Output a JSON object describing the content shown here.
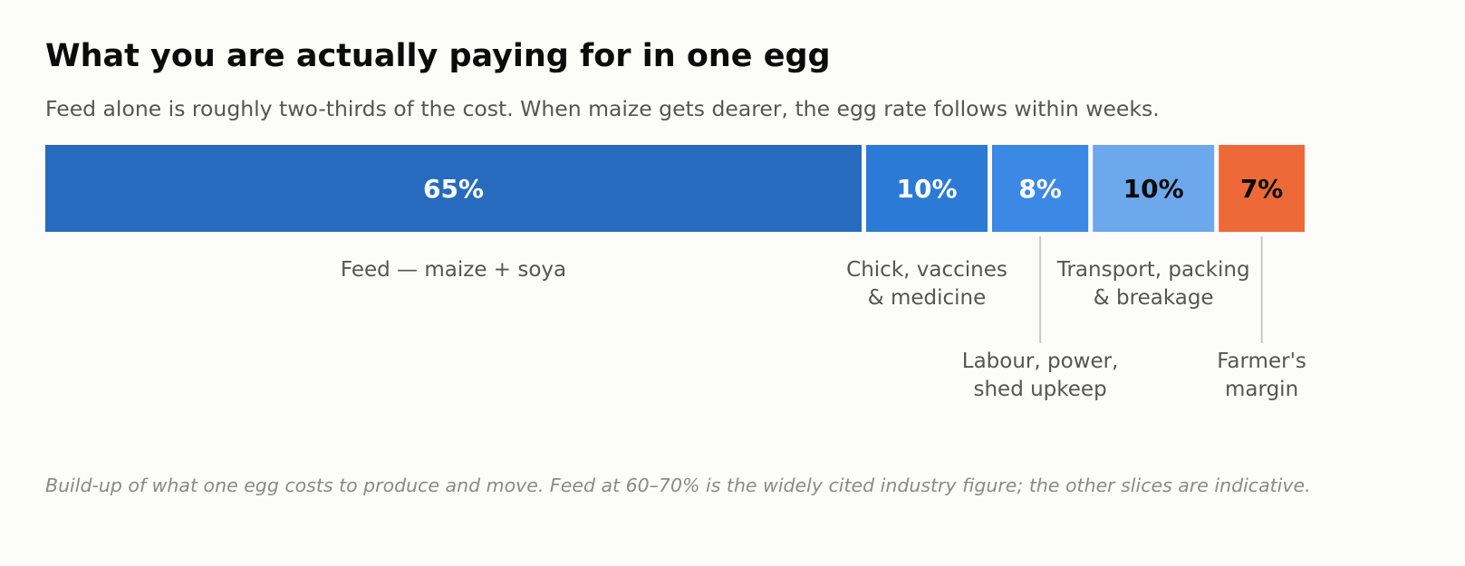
{
  "title": "What you are actually paying for in one egg",
  "subtitle": "Feed alone is roughly two-thirds of the cost. When maize gets dearer, the egg rate follows within weeks.",
  "footnote": "Build-up of what one egg costs to produce and move. Feed at 60–70% is the widely cited industry figure; the other slices are indicative.",
  "chart_data": {
    "type": "bar",
    "orientation": "horizontal-stacked-100",
    "segments": [
      {
        "label_lines": [
          "Feed — maize + soya"
        ],
        "value": 65,
        "value_label": "65%",
        "color": "#276bbf",
        "value_color": "#ffffff",
        "label_row": "upper"
      },
      {
        "label_lines": [
          "Chick, vaccines",
          "& medicine"
        ],
        "value": 10,
        "value_label": "10%",
        "color": "#2b7ad6",
        "value_color": "#ffffff",
        "label_row": "upper"
      },
      {
        "label_lines": [
          "Labour, power,",
          "shed upkeep"
        ],
        "value": 8,
        "value_label": "8%",
        "color": "#3b89e5",
        "value_color": "#ffffff",
        "label_row": "lower"
      },
      {
        "label_lines": [
          "Transport, packing",
          "& breakage"
        ],
        "value": 10,
        "value_label": "10%",
        "color": "#6da8ec",
        "value_color": "#0b0b0b",
        "label_row": "upper"
      },
      {
        "label_lines": [
          "Farmer's",
          "margin"
        ],
        "value": 7,
        "value_label": "7%",
        "color": "#ed6a38",
        "value_color": "#0b0b0b",
        "label_row": "lower"
      }
    ],
    "total": 100,
    "legend": "none",
    "grid": false
  }
}
